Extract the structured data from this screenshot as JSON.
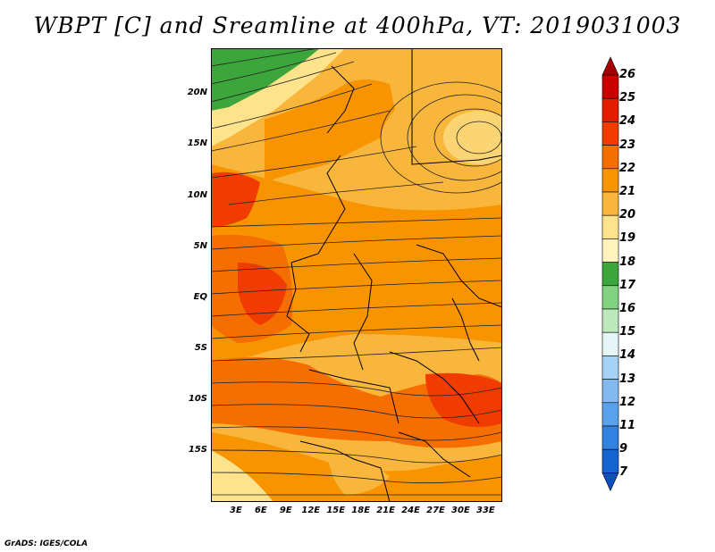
{
  "title": "WBPT [C] and Sreamline at 400hPa, VT: 2019031003",
  "credit": "GrADS: IGES/COLA",
  "lat_labels": [
    "20N",
    "15N",
    "10N",
    "5N",
    "EQ",
    "5S",
    "10S",
    "15S"
  ],
  "lat_values": [
    20,
    15,
    10,
    5,
    0,
    -5,
    -10,
    -15
  ],
  "lon_labels": [
    "3E",
    "6E",
    "9E",
    "12E",
    "15E",
    "18E",
    "21E",
    "24E",
    "27E",
    "30E",
    "33E"
  ],
  "lon_values": [
    3,
    6,
    9,
    12,
    15,
    18,
    21,
    24,
    27,
    30,
    33
  ],
  "map_extent": {
    "lon": [
      0,
      35
    ],
    "lat": [
      -20,
      24.5
    ]
  },
  "colorbar": {
    "labels": [
      "26",
      "25",
      "24",
      "23",
      "22",
      "21",
      "20",
      "19",
      "18",
      "17",
      "16",
      "15",
      "14",
      "13",
      "12",
      "11",
      "9",
      "7"
    ],
    "colors": [
      "#a50000",
      "#c80000",
      "#e11e00",
      "#f03c00",
      "#f56e00",
      "#f79400",
      "#f9b63c",
      "#fce38c",
      "#fff4be",
      "#3ca53c",
      "#82d282",
      "#bde9bd",
      "#e6f5f5",
      "#a5d2f5",
      "#82baf0",
      "#5aa0eb",
      "#3282e1",
      "#1464d2",
      "#0a50c0"
    ]
  }
}
